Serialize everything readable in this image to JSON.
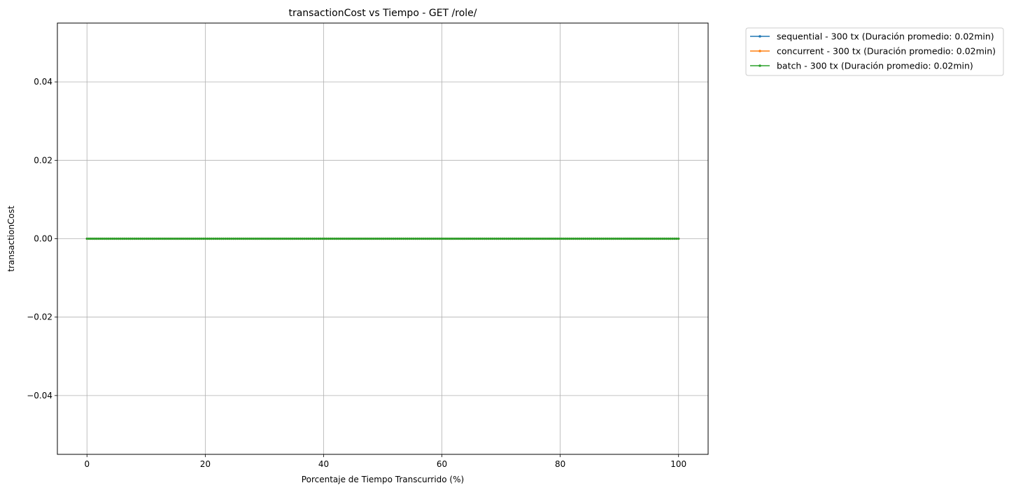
{
  "chart_data": {
    "type": "line",
    "title": "transactionCost vs Tiempo - GET /role/",
    "xlabel": "Porcentaje de Tiempo Transcurrido (%)",
    "ylabel": "transactionCost",
    "xlim": [
      -5,
      105
    ],
    "ylim": [
      -0.055,
      0.055
    ],
    "xticks": [
      0,
      20,
      40,
      60,
      80,
      100
    ],
    "xtick_labels": [
      "0",
      "20",
      "40",
      "60",
      "80",
      "100"
    ],
    "yticks": [
      0.04,
      0.02,
      0.0,
      -0.02,
      -0.04
    ],
    "ytick_labels": [
      "0.04",
      "0.02",
      "0.00",
      "−0.02",
      "−0.04"
    ],
    "grid": true,
    "legend_position": "outside-top-right",
    "points_per_series": 300,
    "x_range": [
      0,
      100
    ],
    "series": [
      {
        "name": "sequential - 300 tx (Duración promedio: 0.02min)",
        "color": "#1f77b4",
        "constant_value": 0.0
      },
      {
        "name": "concurrent - 300 tx (Duración promedio: 0.02min)",
        "color": "#ff7f0e",
        "constant_value": 0.0
      },
      {
        "name": "batch - 300 tx (Duración promedio: 0.02min)",
        "color": "#2ca02c",
        "constant_value": 0.0
      }
    ]
  }
}
